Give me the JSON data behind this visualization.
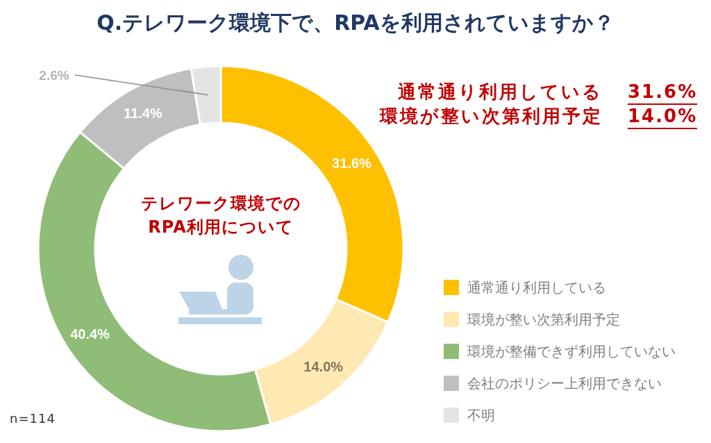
{
  "chart_data": {
    "type": "donut",
    "title": "Q.テレワーク環境下で、RPAを利用されていますか？",
    "categories": [
      "通常通り利用している",
      "環境が整い次第利用予定",
      "環境が整備できず利用していない",
      "会社のポリシー上利用できない",
      "不明"
    ],
    "values": [
      31.6,
      14.0,
      40.4,
      11.4,
      2.6
    ],
    "value_labels": [
      "31.6%",
      "14.0%",
      "40.4%",
      "11.4%",
      "2.6%"
    ],
    "colors": [
      "#ffc000",
      "#ffe9b3",
      "#8fbc76",
      "#bfbfbf",
      "#e4e4e4"
    ],
    "legend": "bottom right",
    "annotations": [
      "テレワーク環境での\nRPA利用について",
      "通常通り利用している",
      "31.6%",
      "環境が整い次第利用予定",
      "14.0%",
      "n=114"
    ]
  }
}
